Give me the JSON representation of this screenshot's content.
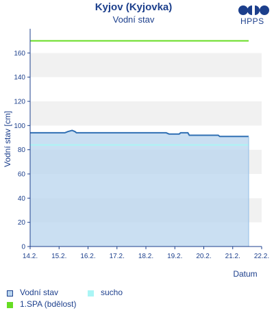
{
  "header": {
    "title": "Kyjov (Kyjovka)",
    "subtitle": "Vodní stav",
    "logo_text": "HPPS"
  },
  "legend": {
    "items": [
      {
        "label": "Vodní stav",
        "color": "#b8d4ee",
        "border": "#1c3f8c"
      },
      {
        "label": "sucho",
        "color": "#aaf5f5",
        "border": "#aaf5f5"
      },
      {
        "label": "1.SPA (bdělost)",
        "color": "#66dd22",
        "border": "#66dd22"
      }
    ]
  },
  "chart_data": {
    "type": "area",
    "xlabel": "Datum",
    "ylabel": "Vodní stav [cm]",
    "ylim": [
      0,
      180
    ],
    "yticks": [
      0,
      20,
      40,
      60,
      80,
      100,
      120,
      140,
      160
    ],
    "x_tick_labels": [
      "14.2.",
      "15.2.",
      "16.2.",
      "17.2.",
      "18.2.",
      "19.2.",
      "20.2.",
      "21.2.",
      "22.2."
    ],
    "xlim_days": [
      14,
      22
    ],
    "series": [
      {
        "name": "Vodní stav",
        "color": "#2f6fb3",
        "fill": "#b8d4ee",
        "points": [
          [
            14.0,
            94
          ],
          [
            15.2,
            94
          ],
          [
            15.3,
            95
          ],
          [
            15.45,
            96
          ],
          [
            15.55,
            95
          ],
          [
            15.6,
            94
          ],
          [
            17.0,
            94
          ],
          [
            18.0,
            94
          ],
          [
            18.7,
            94
          ],
          [
            18.8,
            93
          ],
          [
            19.15,
            93
          ],
          [
            19.2,
            94
          ],
          [
            19.45,
            94
          ],
          [
            19.5,
            92
          ],
          [
            20.0,
            92
          ],
          [
            20.5,
            92
          ],
          [
            20.55,
            91
          ],
          [
            21.0,
            91
          ],
          [
            21.55,
            91
          ]
        ]
      },
      {
        "name": "sucho",
        "color": "#aaf5f5",
        "points": [
          [
            14.0,
            84
          ],
          [
            21.55,
            84
          ]
        ]
      },
      {
        "name": "1.SPA (bdělost)",
        "color": "#66dd22",
        "points": [
          [
            14.0,
            170
          ],
          [
            21.55,
            170
          ]
        ]
      }
    ],
    "grid": true,
    "legend_position": "bottom"
  }
}
